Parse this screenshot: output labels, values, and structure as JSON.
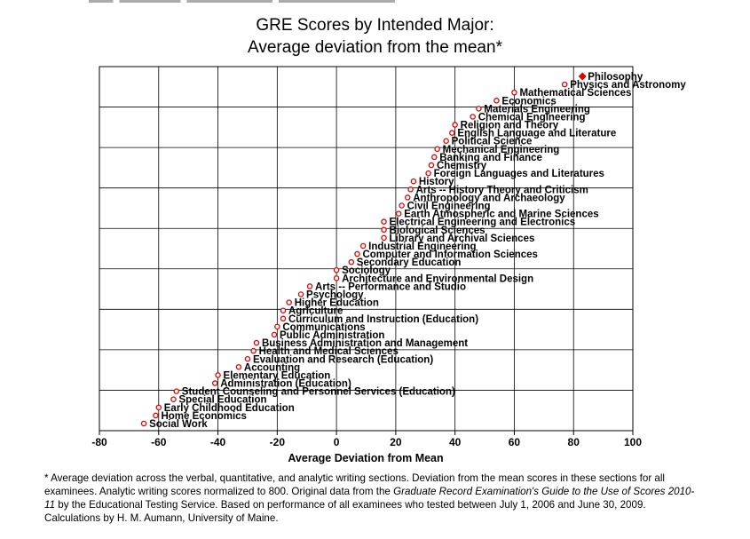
{
  "chart_data": {
    "type": "scatter",
    "title": "GRE Scores by Intended Major:",
    "subtitle": "Average deviation from the mean*",
    "xlabel": "Average Deviation from Mean",
    "xlim": [
      -80,
      100
    ],
    "xticks": [
      -80,
      -60,
      -40,
      -20,
      0,
      20,
      40,
      60,
      80,
      100
    ],
    "grid": true,
    "colors": {
      "marker": "#e00000",
      "highlight": "#e00000",
      "text": "#000000"
    },
    "points": [
      {
        "label": "Philosophy",
        "x": 83,
        "highlight": true
      },
      {
        "label": "Physics and Astronomy",
        "x": 77
      },
      {
        "label": "Mathematical Sciences",
        "x": 60
      },
      {
        "label": "Economics",
        "x": 54
      },
      {
        "label": "Materials Engineering",
        "x": 48
      },
      {
        "label": "Chemical Engineering",
        "x": 46
      },
      {
        "label": "Religion and Theory",
        "x": 40
      },
      {
        "label": "English Language and Literature",
        "x": 39
      },
      {
        "label": "Political Science",
        "x": 37
      },
      {
        "label": "Mechanical Engineering",
        "x": 34
      },
      {
        "label": "Banking and Finance",
        "x": 33
      },
      {
        "label": "Chemistry",
        "x": 32
      },
      {
        "label": "Foreign Languages and Literatures",
        "x": 31
      },
      {
        "label": "History",
        "x": 26
      },
      {
        "label": "Arts -- History Theory and Criticism",
        "x": 25
      },
      {
        "label": "Anthropology and Archaeology",
        "x": 24
      },
      {
        "label": "Civil Engineering",
        "x": 22
      },
      {
        "label": "Earth Atmospheric and Marine Sciences",
        "x": 21
      },
      {
        "label": "Electrical Engineering and Electronics",
        "x": 16
      },
      {
        "label": "Biological Sciences",
        "x": 16
      },
      {
        "label": "Library and Archival Sciences",
        "x": 16
      },
      {
        "label": "Industrial Engineering",
        "x": 9
      },
      {
        "label": "Computer and Information Sciences",
        "x": 7
      },
      {
        "label": "Secondary Education",
        "x": 5
      },
      {
        "label": "Sociology",
        "x": 0
      },
      {
        "label": "Architecture and Environmental Design",
        "x": 0
      },
      {
        "label": "Arts -- Performance and Studio",
        "x": -9
      },
      {
        "label": "Psychology",
        "x": -12
      },
      {
        "label": "Higher Education",
        "x": -16
      },
      {
        "label": "Agriculture",
        "x": -18
      },
      {
        "label": "Curriculum and Instruction (Education)",
        "x": -18
      },
      {
        "label": "Communications",
        "x": -20
      },
      {
        "label": "Public Administration",
        "x": -21
      },
      {
        "label": "Business Administration and Management",
        "x": -27
      },
      {
        "label": "Health and Medical Sciences",
        "x": -28
      },
      {
        "label": "Evaluation and Research (Education)",
        "x": -30
      },
      {
        "label": "Accounting",
        "x": -33
      },
      {
        "label": "Elementary Education",
        "x": -40
      },
      {
        "label": "Administration (Education)",
        "x": -41
      },
      {
        "label": "Student Counseling and Personnel Services (Education)",
        "x": -54
      },
      {
        "label": "Special Education",
        "x": -55
      },
      {
        "label": "Early Childhood Education",
        "x": -60
      },
      {
        "label": "Home Economics",
        "x": -61
      },
      {
        "label": "Social Work",
        "x": -65
      }
    ]
  },
  "footnote": {
    "part1": "* Average deviation across the verbal, quantitative, and analytic writing sections. Deviation from the mean scores in these sections for all examinees. Analytic writing scores normalized to 800. Original data from the ",
    "source_title": "Graduate Record Examination's Guide to the Use of Scores 2010-11",
    "part2": " by the Educational Testing Service. Based on performance of all examinees who tested between July 1, 2006 and June 30, 2009. Calculations by H. M. Aumann, University of Maine."
  }
}
